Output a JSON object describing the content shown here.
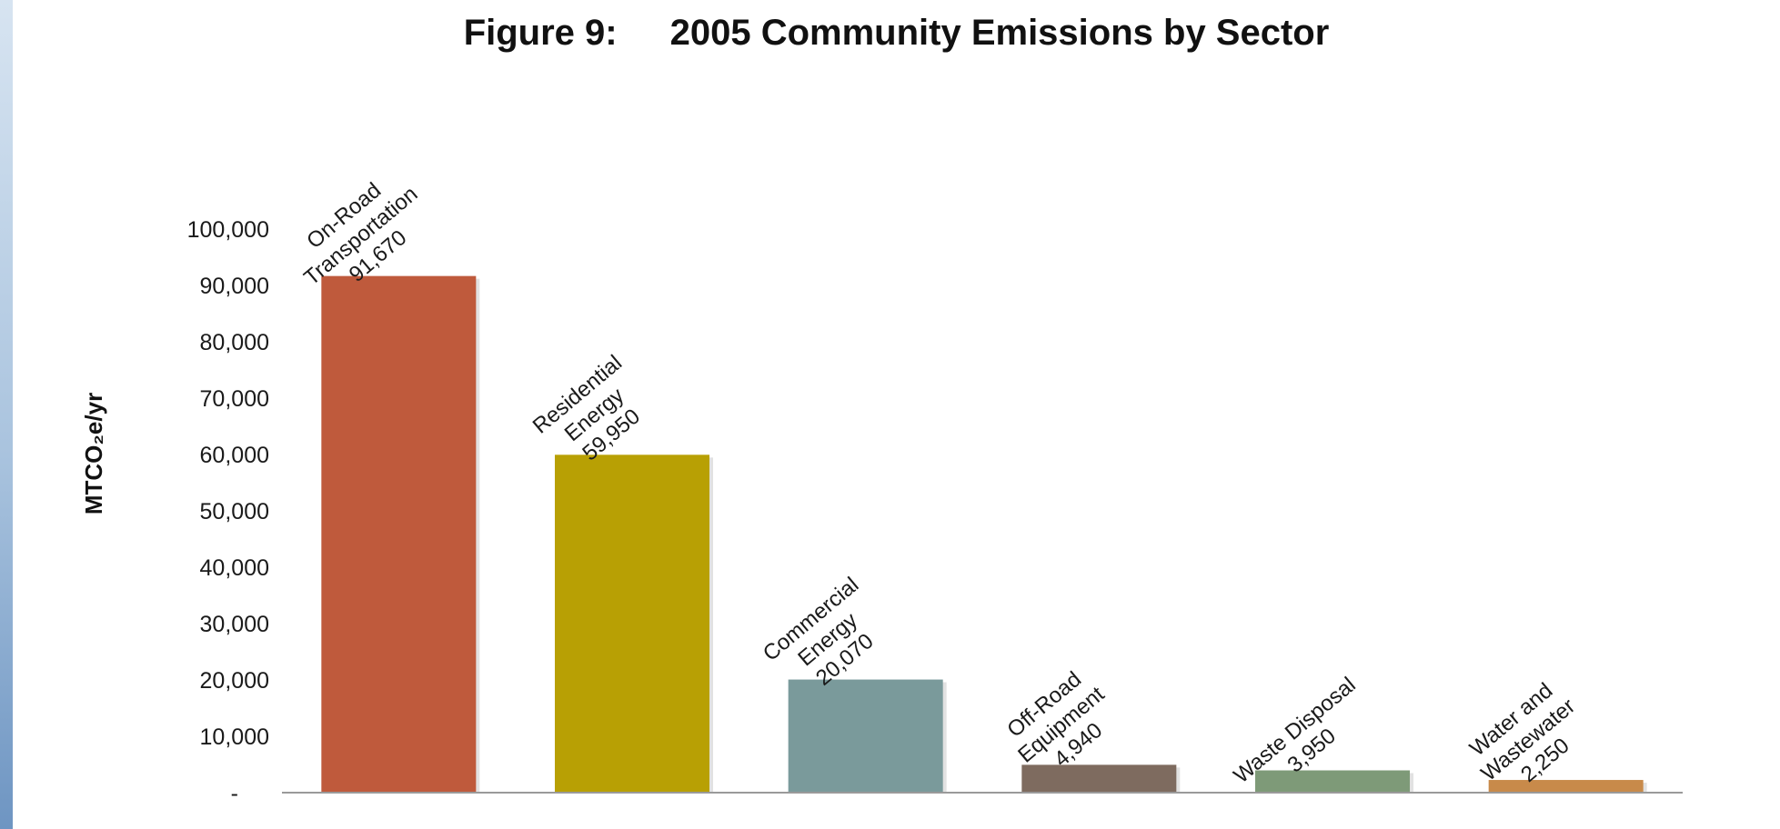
{
  "chart_data": {
    "type": "bar",
    "title_prefix": "Figure 9:",
    "title": "2005 Community Emissions by Sector",
    "ylabel": "MTCO₂e/yr",
    "xlabel": "",
    "ylim": [
      0,
      100000
    ],
    "ytick_values": [
      0,
      10000,
      20000,
      30000,
      40000,
      50000,
      60000,
      70000,
      80000,
      90000,
      100000
    ],
    "ytick_labels": [
      "-",
      "10,000",
      "20,000",
      "30,000",
      "40,000",
      "50,000",
      "60,000",
      "70,000",
      "80,000",
      "90,000",
      "100,000"
    ],
    "grid": false,
    "legend": "none",
    "bars": [
      {
        "category": [
          "On-Road",
          "Transportation"
        ],
        "value": 91670,
        "value_label": "91,670",
        "color": "#bf5a3c"
      },
      {
        "category": [
          "Residential",
          "Energy"
        ],
        "value": 59950,
        "value_label": "59,950",
        "color": "#b8a004"
      },
      {
        "category": [
          "Commercial",
          "Energy"
        ],
        "value": 20070,
        "value_label": "20,070",
        "color": "#7a9a9b"
      },
      {
        "category": [
          "Off-Road",
          "Equipment"
        ],
        "value": 4940,
        "value_label": "4,940",
        "color": "#7e6b5f"
      },
      {
        "category": [
          "Waste Disposal"
        ],
        "value": 3950,
        "value_label": "3,950",
        "color": "#7e9a78"
      },
      {
        "category": [
          "Water and",
          "Wastewater"
        ],
        "value": 2250,
        "value_label": "2,250",
        "color": "#c88a4a"
      }
    ]
  }
}
